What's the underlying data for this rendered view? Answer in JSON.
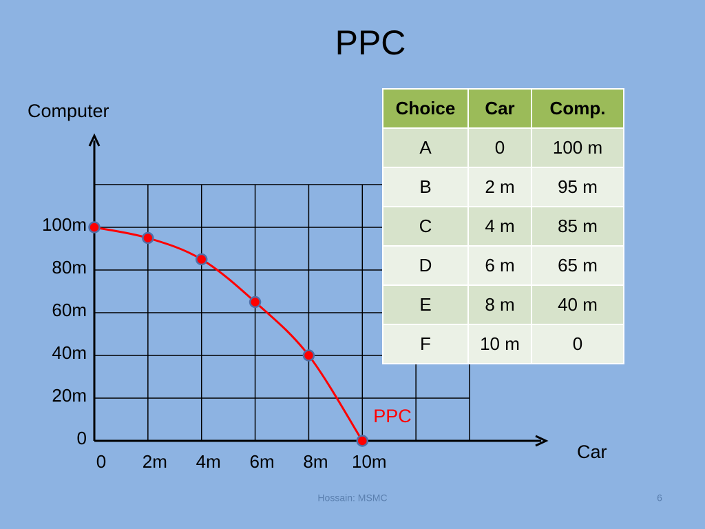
{
  "title": "PPC",
  "chart_data": {
    "type": "line",
    "x_label": "Car",
    "y_label": "Computer",
    "x": [
      0,
      2,
      4,
      6,
      8,
      10
    ],
    "series": [
      {
        "name": "PPC",
        "color": "#ff0000",
        "values": [
          100,
          95,
          85,
          65,
          40,
          0
        ]
      }
    ],
    "xlim": [
      0,
      14
    ],
    "ylim": [
      0,
      120
    ],
    "xticks": [
      0,
      {
        "value": 2,
        "label": "2m"
      },
      {
        "value": 4,
        "label": "4m"
      },
      {
        "value": 6,
        "label": "6m"
      },
      {
        "value": 8,
        "label": "8m"
      },
      {
        "value": 10,
        "label": "10m"
      }
    ],
    "yticks": [
      0,
      {
        "value": 20,
        "label": "20m"
      },
      {
        "value": 40,
        "label": "40m"
      },
      {
        "value": 60,
        "label": "60m"
      },
      {
        "value": 80,
        "label": "80m"
      },
      {
        "value": 100,
        "label": "100m"
      }
    ],
    "grid": true
  },
  "table": {
    "header": [
      "Choice",
      "Car",
      "Comp."
    ],
    "rows": [
      [
        "A",
        "0",
        "100 m"
      ],
      [
        "B",
        "2 m",
        "95 m"
      ],
      [
        "C",
        "4 m",
        "85 m"
      ],
      [
        "D",
        "6 m",
        "65 m"
      ],
      [
        "E",
        "8 m",
        "40 m"
      ],
      [
        "F",
        "10 m",
        "0"
      ]
    ]
  },
  "footer": "Hossain: MSMC",
  "page_number": "6"
}
